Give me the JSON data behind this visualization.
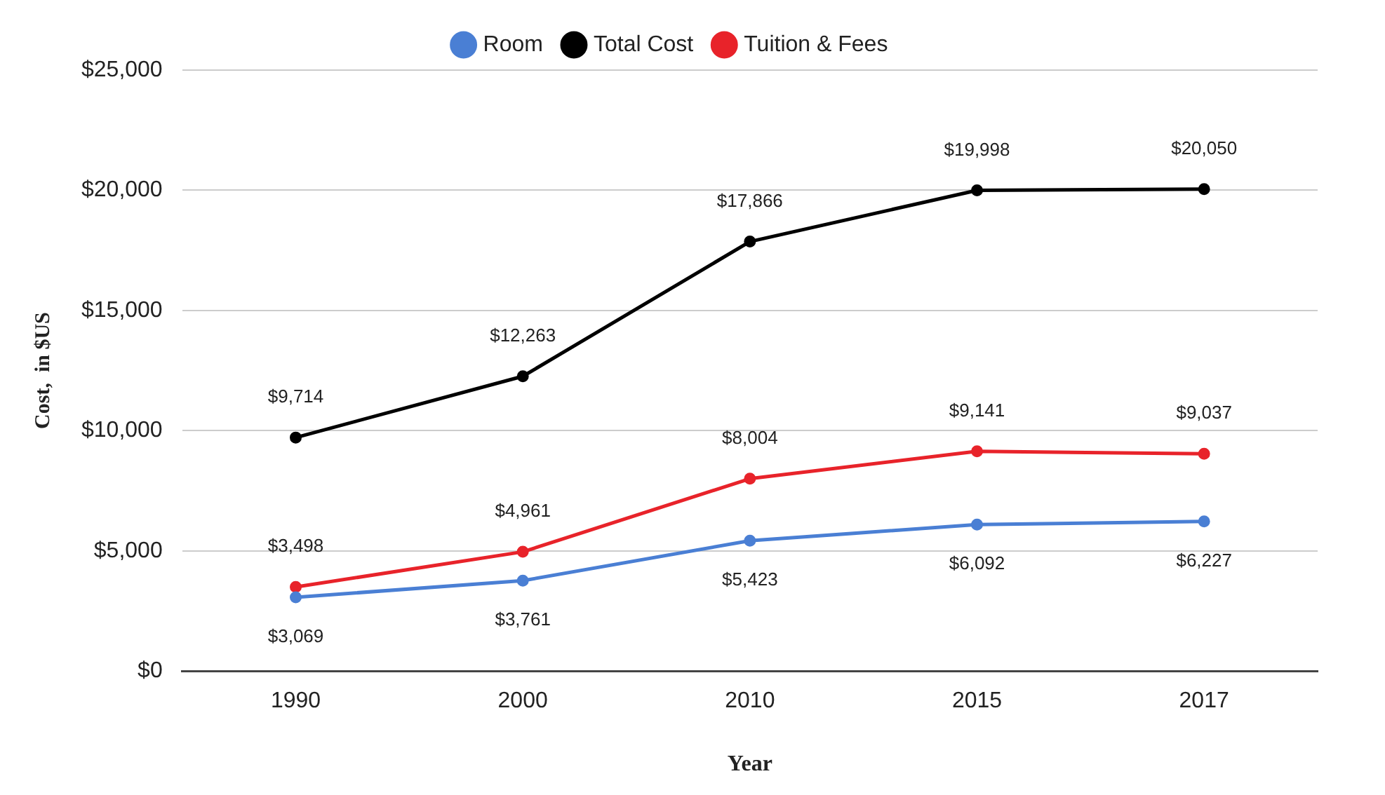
{
  "chart_data": {
    "type": "line",
    "xlabel": "Year",
    "ylabel": "Cost,  in $US",
    "categories": [
      "1990",
      "2000",
      "2010",
      "2015",
      "2017"
    ],
    "series": [
      {
        "name": "Room",
        "color": "#4a7fd4",
        "values": [
          3069,
          3761,
          5423,
          6092,
          6227
        ],
        "value_labels": [
          "$3,069",
          "$3,761",
          "$5,423",
          "$6,092",
          "$6,227"
        ]
      },
      {
        "name": "Total Cost",
        "color": "#000000",
        "values": [
          9714,
          12263,
          17866,
          19998,
          20050
        ],
        "value_labels": [
          "$9,714",
          "$12,263",
          "$17,866",
          "$19,998",
          "$20,050"
        ]
      },
      {
        "name": "Tuition & Fees",
        "color": "#e8232a",
        "values": [
          3498,
          4961,
          8004,
          9141,
          9037
        ],
        "value_labels": [
          "$3,498",
          "$4,961",
          "$8,004",
          "$9,141",
          "$9,037"
        ]
      }
    ],
    "ylim": [
      0,
      25000
    ],
    "yticks": [
      {
        "value": 0,
        "label": "$0"
      },
      {
        "value": 5000,
        "label": "$5,000"
      },
      {
        "value": 10000,
        "label": "$10,000"
      },
      {
        "value": 15000,
        "label": "$15,000"
      },
      {
        "value": 20000,
        "label": "$20,000"
      },
      {
        "value": 25000,
        "label": "$25,000"
      }
    ],
    "grid": "y",
    "legend": "top",
    "marker": "circle",
    "line_style": "solid"
  }
}
